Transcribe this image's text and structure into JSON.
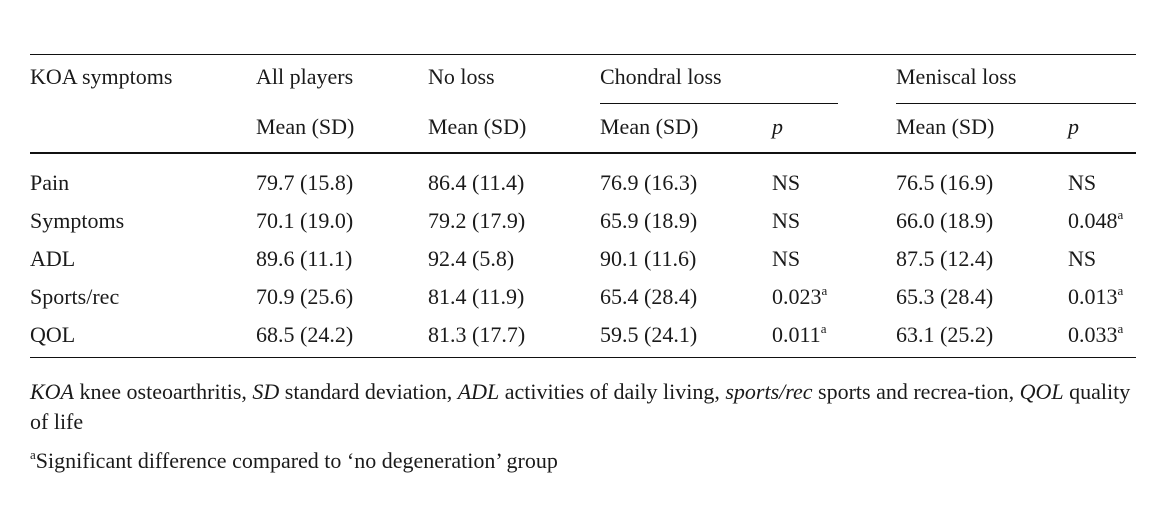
{
  "table": {
    "group_headers": {
      "col0": "KOA symptoms",
      "col1": "All players",
      "col2": "No loss",
      "chondral": "Chondral loss",
      "meniscal": "Meniscal loss"
    },
    "sub_headers": {
      "mean_sd": "Mean (SD)",
      "p": "p"
    },
    "rows": [
      {
        "label": "Pain",
        "all": "79.7 (15.8)",
        "noloss": "86.4 (11.4)",
        "chondral_mean": "76.9 (16.3)",
        "chondral_p": "NS",
        "chondral_sig": "",
        "meniscal_mean": "76.5 (16.9)",
        "meniscal_p": "NS",
        "meniscal_sig": ""
      },
      {
        "label": "Symptoms",
        "all": "70.1 (19.0)",
        "noloss": "79.2 (17.9)",
        "chondral_mean": "65.9 (18.9)",
        "chondral_p": "NS",
        "chondral_sig": "",
        "meniscal_mean": "66.0 (18.9)",
        "meniscal_p": "0.048",
        "meniscal_sig": "a"
      },
      {
        "label": "ADL",
        "all": "89.6 (11.1)",
        "noloss": "92.4 (5.8)",
        "chondral_mean": "90.1 (11.6)",
        "chondral_p": "NS",
        "chondral_sig": "",
        "meniscal_mean": "87.5 (12.4)",
        "meniscal_p": "NS",
        "meniscal_sig": ""
      },
      {
        "label": "Sports/rec",
        "all": "70.9 (25.6)",
        "noloss": "81.4 (11.9)",
        "chondral_mean": "65.4 (28.4)",
        "chondral_p": "0.023",
        "chondral_sig": "a",
        "meniscal_mean": "65.3 (28.4)",
        "meniscal_p": "0.013",
        "meniscal_sig": "a"
      },
      {
        "label": "QOL",
        "all": "68.5 (24.2)",
        "noloss": "81.3 (17.7)",
        "chondral_mean": "59.5 (24.1)",
        "chondral_p": "0.011",
        "chondral_sig": "a",
        "meniscal_mean": "63.1 (25.2)",
        "meniscal_p": "0.033",
        "meniscal_sig": "a"
      }
    ]
  },
  "footnotes": {
    "abbrev": [
      {
        "term": "KOA",
        "def": " knee osteoarthritis, "
      },
      {
        "term": "SD",
        "def": " standard deviation, "
      },
      {
        "term": "ADL",
        "def": " activities of daily living, "
      },
      {
        "term": "sports/rec",
        "def": " sports and recrea-tion, "
      },
      {
        "term": "QOL",
        "def": " quality of life"
      }
    ],
    "sig_marker": "a",
    "sig_text": "Significant difference compared to ‘no degeneration’ group"
  }
}
